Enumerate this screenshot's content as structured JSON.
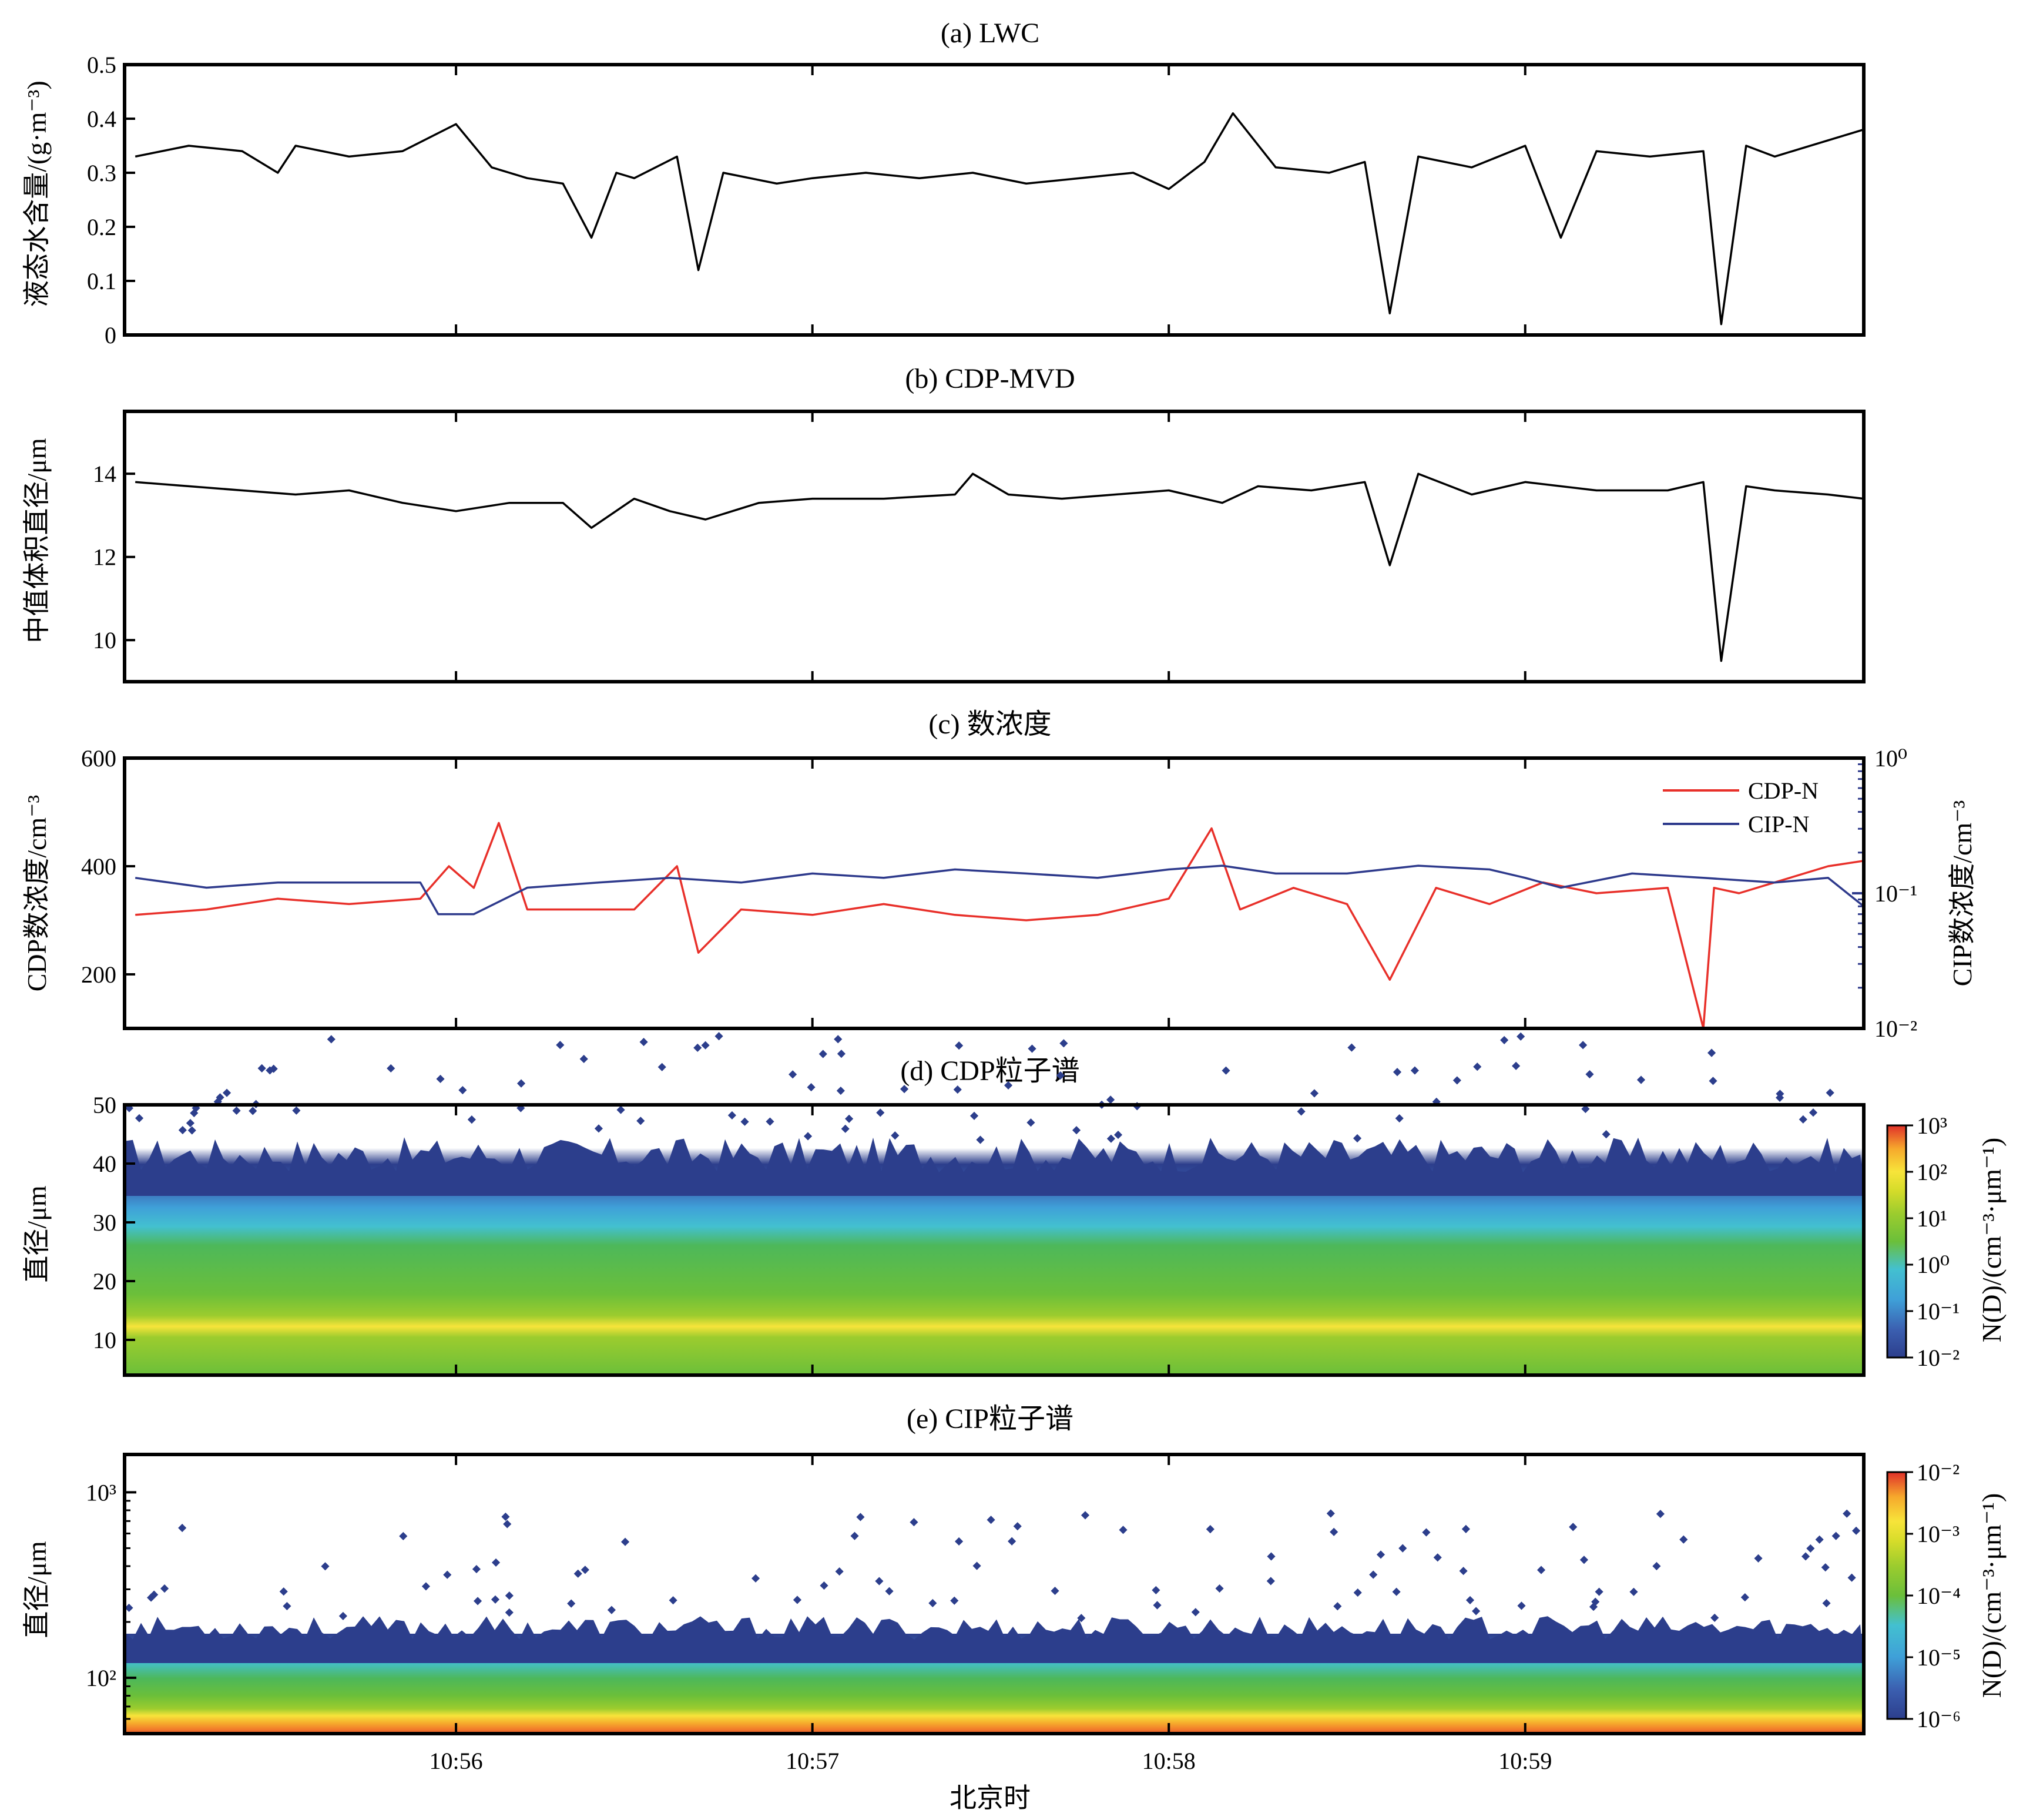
{
  "chart_data": [
    {
      "id": "a",
      "type": "line",
      "title": "(a) LWC",
      "ylabel": "液态水含量/(g·m⁻³)",
      "ylim": [
        0,
        0.5
      ],
      "yticks": [
        "0",
        "0.1",
        "0.2",
        "0.3",
        "0.4",
        "0.5"
      ],
      "xlim_minutes": [
        655.07,
        659.95
      ],
      "series": [
        {
          "color": "#000000",
          "x_minutes": [
            655.1,
            655.25,
            655.4,
            655.5,
            655.55,
            655.7,
            655.85,
            656.0,
            656.1,
            656.2,
            656.3,
            656.38,
            656.45,
            656.5,
            656.62,
            656.68,
            656.75,
            656.9,
            657.0,
            657.15,
            657.3,
            657.45,
            657.6,
            657.75,
            657.9,
            658.0,
            658.1,
            658.18,
            658.3,
            658.45,
            658.55,
            658.62,
            658.7,
            658.85,
            659.0,
            659.1,
            659.2,
            659.35,
            659.5,
            659.55,
            659.62,
            659.7,
            659.85,
            659.95
          ],
          "values": [
            0.33,
            0.35,
            0.34,
            0.3,
            0.35,
            0.33,
            0.34,
            0.39,
            0.31,
            0.29,
            0.28,
            0.18,
            0.3,
            0.29,
            0.33,
            0.12,
            0.3,
            0.28,
            0.29,
            0.3,
            0.29,
            0.3,
            0.28,
            0.29,
            0.3,
            0.27,
            0.32,
            0.41,
            0.31,
            0.3,
            0.32,
            0.04,
            0.33,
            0.31,
            0.35,
            0.18,
            0.34,
            0.33,
            0.34,
            0.02,
            0.35,
            0.33,
            0.36,
            0.38
          ]
        }
      ]
    },
    {
      "id": "b",
      "type": "line",
      "title": "(b) CDP-MVD",
      "ylabel": "中值体积直径/μm",
      "ylim": [
        9,
        15.5
      ],
      "yticks": [
        "10",
        "12",
        "14"
      ],
      "xlim_minutes": [
        655.07,
        659.95
      ],
      "series": [
        {
          "color": "#000000",
          "x_minutes": [
            655.1,
            655.25,
            655.4,
            655.55,
            655.7,
            655.85,
            656.0,
            656.15,
            656.3,
            656.38,
            656.5,
            656.6,
            656.7,
            656.85,
            657.0,
            657.2,
            657.4,
            657.45,
            657.55,
            657.7,
            657.85,
            658.0,
            658.15,
            658.25,
            658.4,
            658.55,
            658.62,
            658.7,
            658.85,
            659.0,
            659.2,
            659.4,
            659.5,
            659.55,
            659.62,
            659.7,
            659.85,
            659.95
          ],
          "values": [
            13.8,
            13.7,
            13.6,
            13.5,
            13.6,
            13.3,
            13.1,
            13.3,
            13.3,
            12.7,
            13.4,
            13.1,
            12.9,
            13.3,
            13.4,
            13.4,
            13.5,
            14.0,
            13.5,
            13.4,
            13.5,
            13.6,
            13.3,
            13.7,
            13.6,
            13.8,
            11.8,
            14.0,
            13.5,
            13.8,
            13.6,
            13.6,
            13.8,
            9.5,
            13.7,
            13.6,
            13.5,
            13.4
          ]
        }
      ]
    },
    {
      "id": "c",
      "type": "line",
      "title": "(c) 数浓度",
      "ylabel": "CDP数浓度/cm⁻³",
      "ylabel_right": "CIP数浓度/cm⁻³",
      "ylim": [
        100,
        600
      ],
      "yticks": [
        "200",
        "400",
        "600"
      ],
      "ylim_right": [
        0.01,
        1
      ],
      "yscale_right": "log",
      "yticks_right": [
        "10⁻²",
        "10⁻¹",
        "10⁰"
      ],
      "legend_position": "top-right",
      "xlim_minutes": [
        655.07,
        659.95
      ],
      "series": [
        {
          "name": "CDP-N",
          "color": "#e8302a",
          "axis": "left",
          "x_minutes": [
            655.1,
            655.3,
            655.5,
            655.7,
            655.9,
            655.98,
            656.05,
            656.12,
            656.2,
            656.35,
            656.5,
            656.62,
            656.68,
            656.8,
            657.0,
            657.2,
            657.4,
            657.6,
            657.8,
            658.0,
            658.12,
            658.2,
            658.35,
            658.5,
            658.62,
            658.75,
            658.9,
            659.05,
            659.2,
            659.4,
            659.5,
            659.53,
            659.6,
            659.7,
            659.85,
            659.95
          ],
          "values": [
            310,
            320,
            340,
            330,
            340,
            400,
            360,
            480,
            320,
            320,
            320,
            400,
            240,
            320,
            310,
            330,
            310,
            300,
            310,
            340,
            470,
            320,
            360,
            330,
            190,
            360,
            330,
            370,
            350,
            360,
            100,
            360,
            350,
            370,
            400,
            410
          ]
        },
        {
          "name": "CIP-N",
          "color": "#2e3a8c",
          "axis": "right",
          "x_minutes": [
            655.1,
            655.3,
            655.5,
            655.7,
            655.9,
            655.95,
            656.05,
            656.2,
            656.4,
            656.6,
            656.8,
            657.0,
            657.2,
            657.4,
            657.6,
            657.8,
            658.0,
            658.15,
            658.3,
            658.5,
            658.7,
            658.9,
            659.0,
            659.1,
            659.3,
            659.5,
            659.7,
            659.85,
            659.95
          ],
          "values": [
            0.13,
            0.11,
            0.12,
            0.12,
            0.12,
            0.07,
            0.07,
            0.11,
            0.12,
            0.13,
            0.12,
            0.14,
            0.13,
            0.15,
            0.14,
            0.13,
            0.15,
            0.16,
            0.14,
            0.14,
            0.16,
            0.15,
            0.13,
            0.11,
            0.14,
            0.13,
            0.12,
            0.13,
            0.08
          ]
        }
      ]
    },
    {
      "id": "d",
      "type": "heatmap",
      "title": "(d) CDP粒子谱",
      "ylabel": "直径/μm",
      "ylim": [
        4,
        50
      ],
      "yticks": [
        "10",
        "20",
        "30",
        "40",
        "50"
      ],
      "colorbar_label": "N(D)/(cm⁻³·μm⁻¹)",
      "colorbar_scale": "log",
      "colorbar_range": [
        0.01,
        1000
      ],
      "colorbar_ticks": [
        "10⁻²",
        "10⁻¹",
        "10⁰",
        "10¹",
        "10²",
        "10³"
      ],
      "xlim_minutes": [
        655.07,
        659.95
      ]
    },
    {
      "id": "e",
      "type": "heatmap",
      "title": "(e) CIP粒子谱",
      "ylabel": "直径/μm",
      "yscale": "log",
      "ylim": [
        50,
        1600
      ],
      "yticks": [
        "10²",
        "10³"
      ],
      "colorbar_label": "N(D)/(cm⁻³·μm⁻¹)",
      "colorbar_scale": "log",
      "colorbar_range": [
        1e-06,
        0.01
      ],
      "colorbar_ticks": [
        "10⁻⁶",
        "10⁻⁵",
        "10⁻⁴",
        "10⁻³",
        "10⁻²"
      ],
      "xlim_minutes": [
        655.07,
        659.95
      ]
    }
  ],
  "xaxis": {
    "label": "北京时",
    "ticks": [
      {
        "minute": 656,
        "label": "10:56"
      },
      {
        "minute": 657,
        "label": "10:57"
      },
      {
        "minute": 658,
        "label": "10:58"
      },
      {
        "minute": 659,
        "label": "10:59"
      }
    ]
  },
  "colormap": [
    "#2c3e8c",
    "#3b5fb0",
    "#3fa0d8",
    "#43c0d0",
    "#4db85a",
    "#6bbf3a",
    "#9ccc2e",
    "#d6dc2a",
    "#f7e43a",
    "#f6a82c",
    "#ee5a2a",
    "#d73027"
  ]
}
